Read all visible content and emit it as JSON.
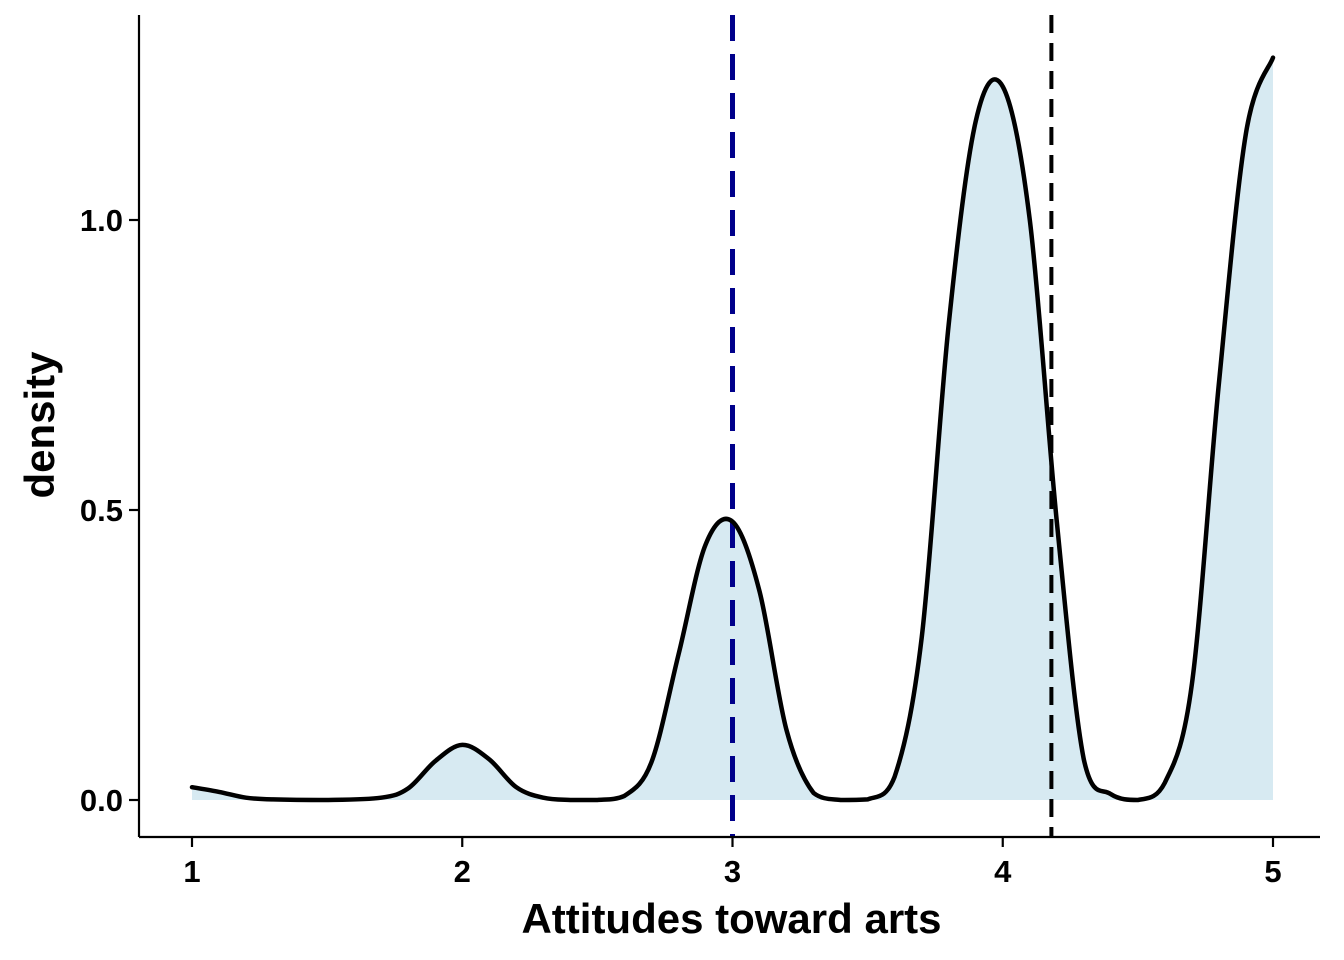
{
  "chart_data": {
    "type": "area",
    "xlabel": "Attitudes toward arts",
    "ylabel": "density",
    "xlim": [
      1,
      5
    ],
    "ylim": [
      0,
      1.3
    ],
    "x_ticks": [
      1,
      2,
      3,
      4,
      5
    ],
    "x_tick_labels": [
      "1",
      "2",
      "3",
      "4",
      "5"
    ],
    "y_ticks": [
      0.0,
      0.5,
      1.0
    ],
    "y_tick_labels": [
      "0.0",
      "0.5",
      "1.0"
    ],
    "grid": false,
    "legend": "none",
    "series": [
      {
        "x": [
          1.0,
          1.1,
          1.2,
          1.3,
          1.5,
          1.7,
          1.8,
          1.9,
          2.0,
          2.1,
          2.2,
          2.3,
          2.4,
          2.5,
          2.6,
          2.7,
          2.8,
          2.9,
          3.0,
          3.1,
          3.2,
          3.3,
          3.4,
          3.5,
          3.6,
          3.7,
          3.8,
          3.9,
          4.0,
          4.1,
          4.2,
          4.3,
          4.4,
          4.5,
          4.6,
          4.7,
          4.8,
          4.9,
          5.0
        ],
        "y": [
          0.022,
          0.014,
          0.004,
          0.001,
          0.0,
          0.004,
          0.02,
          0.067,
          0.095,
          0.07,
          0.022,
          0.004,
          0.0,
          0.0,
          0.007,
          0.065,
          0.25,
          0.44,
          0.48,
          0.36,
          0.12,
          0.012,
          0.0,
          0.001,
          0.04,
          0.28,
          0.82,
          1.17,
          1.23,
          1.0,
          0.48,
          0.07,
          0.01,
          0.0,
          0.03,
          0.2,
          0.72,
          1.15,
          1.28
        ]
      }
    ],
    "reference_lines": [
      {
        "x": 3.0,
        "style": "dashed",
        "color": "#00008b"
      },
      {
        "x": 4.18,
        "style": "dashed",
        "color": "#000000"
      }
    ],
    "colors": {
      "fill": "#d7eaf2",
      "line": "#000000",
      "axis": "#000000"
    }
  }
}
